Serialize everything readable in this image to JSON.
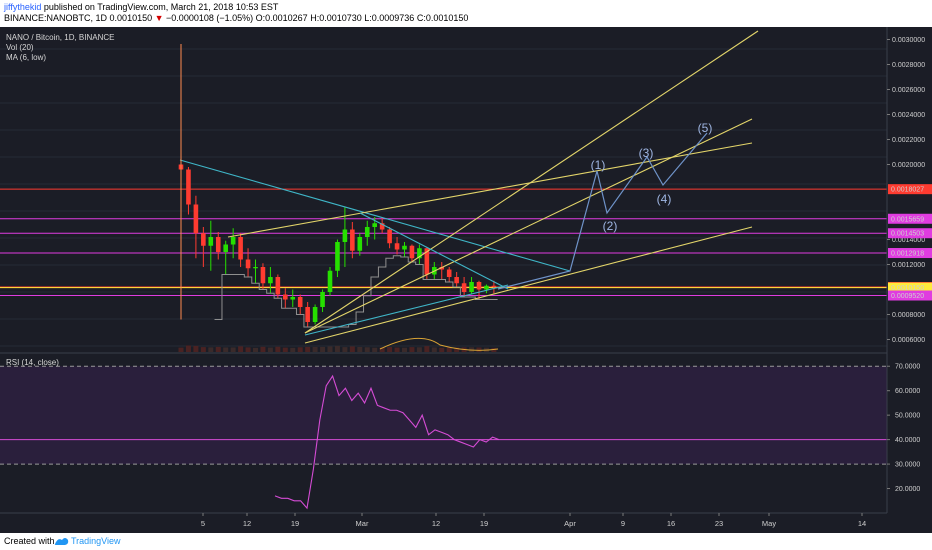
{
  "header": {
    "user": "jiffythekid",
    "published_text": " published on TradingView.com, March 21, 2018 10:53 EST",
    "symbol": "BINANCE:NANOBTC, 1D",
    "last": "0.0010150",
    "change": "−0.0000108 (−1.05%)",
    "o": "O:0.0010267",
    "h": "H:0.0010730",
    "l": "L:0.0009736",
    "c": "C:0.0010150"
  },
  "legend": {
    "title": "NANO / Bitcoin, 1D, BINANCE",
    "vol": "Vol (20)",
    "ma": "MA (6, low)",
    "rsi": "RSI (14, close)"
  },
  "footer": {
    "created": "Created with",
    "brand": "TradingView"
  },
  "colors": {
    "background": "#1b1d26",
    "bull": "#26e000",
    "bear": "#ff3b30",
    "trend_yellow": "#e3d56a",
    "trend_cyan": "#3fb6c8",
    "hline_red": "#ff3b30",
    "hline_magenta": "#e03ce0",
    "projection": "#6f93c9",
    "rsi_line": "#d54cd5",
    "rsi_bg": "#2a1f3c",
    "ma_line": "#8f8f8f",
    "vol_ma": "#d9a335"
  },
  "chart_data": {
    "type": "candlestick",
    "x_ticks": [
      "5",
      "12",
      "19",
      "Mar",
      "12",
      "19",
      "Apr",
      "9",
      "16",
      "23",
      "May",
      "14"
    ],
    "price_axis": [
      "0.0030000",
      "0.0028000",
      "0.0026000",
      "0.0024000",
      "0.0022000",
      "0.0020000",
      "0.0014000",
      "0.0012000",
      "0.0008000",
      "0.0006000"
    ],
    "price_range": [
      0.0005,
      0.0031
    ],
    "highlighted_levels": [
      {
        "label": "0.0018027",
        "value": 0.0018027,
        "color": "#ff3b30"
      },
      {
        "label": "0.0015659",
        "value": 0.0015659,
        "color": "#e03ce0"
      },
      {
        "label": "0.0014503",
        "value": 0.0014503,
        "color": "#e03ce0"
      },
      {
        "label": "0.0012918",
        "value": 0.0012918,
        "color": "#e03ce0"
      },
      {
        "label": "0.0010200",
        "value": 0.00102,
        "color": "#ff3b30"
      },
      {
        "label": "0.0010150",
        "value": 0.001015,
        "color": "#ffeb3b"
      },
      {
        "label": "0.0009520",
        "value": 0.000952,
        "color": "#e03ce0"
      }
    ],
    "candles_ohlc": [
      [
        0.002,
        0.00295,
        0.00076,
        0.00196
      ],
      [
        0.00196,
        0.00198,
        0.0016,
        0.00168
      ],
      [
        0.00168,
        0.00175,
        0.00125,
        0.00145
      ],
      [
        0.00145,
        0.0015,
        0.00118,
        0.00135
      ],
      [
        0.00135,
        0.00155,
        0.00115,
        0.00142
      ],
      [
        0.00142,
        0.00146,
        0.00124,
        0.0013
      ],
      [
        0.0013,
        0.00139,
        0.00112,
        0.00136
      ],
      [
        0.00136,
        0.00149,
        0.00125,
        0.00142
      ],
      [
        0.00142,
        0.00145,
        0.00118,
        0.00124
      ],
      [
        0.00124,
        0.00133,
        0.0011,
        0.00117
      ],
      [
        0.00117,
        0.00124,
        0.00105,
        0.00118
      ],
      [
        0.00118,
        0.00121,
        0.001,
        0.00105
      ],
      [
        0.00105,
        0.00118,
        0.00097,
        0.0011
      ],
      [
        0.0011,
        0.00112,
        0.00093,
        0.00096
      ],
      [
        0.00096,
        0.00101,
        0.00085,
        0.00092
      ],
      [
        0.00092,
        0.001,
        0.00086,
        0.00094
      ],
      [
        0.00094,
        0.00096,
        0.0008,
        0.00086
      ],
      [
        0.00086,
        0.0009,
        0.0007,
        0.00074
      ],
      [
        0.00074,
        0.00088,
        0.00072,
        0.00086
      ],
      [
        0.00086,
        0.001,
        0.00082,
        0.00098
      ],
      [
        0.00098,
        0.00118,
        0.00095,
        0.00115
      ],
      [
        0.00115,
        0.0014,
        0.0011,
        0.00138
      ],
      [
        0.00138,
        0.00166,
        0.00118,
        0.00148
      ],
      [
        0.00148,
        0.00154,
        0.00125,
        0.00131
      ],
      [
        0.00131,
        0.00145,
        0.00127,
        0.00142
      ],
      [
        0.00142,
        0.00155,
        0.00135,
        0.0015
      ],
      [
        0.0015,
        0.00158,
        0.0014,
        0.00153
      ],
      [
        0.00153,
        0.00158,
        0.00145,
        0.00148
      ],
      [
        0.00148,
        0.0015,
        0.00133,
        0.00137
      ],
      [
        0.00137,
        0.00142,
        0.00128,
        0.00132
      ],
      [
        0.00132,
        0.00138,
        0.00126,
        0.00135
      ],
      [
        0.00135,
        0.00136,
        0.00122,
        0.00125
      ],
      [
        0.00125,
        0.00136,
        0.0012,
        0.00133
      ],
      [
        0.00133,
        0.00134,
        0.00108,
        0.00112
      ],
      [
        0.00112,
        0.00122,
        0.00108,
        0.00118
      ],
      [
        0.00118,
        0.00122,
        0.00108,
        0.00116
      ],
      [
        0.00116,
        0.00118,
        0.00106,
        0.0011
      ],
      [
        0.0011,
        0.00114,
        0.00102,
        0.00105
      ],
      [
        0.00105,
        0.0011,
        0.00094,
        0.00098
      ],
      [
        0.00098,
        0.0011,
        0.00096,
        0.00106
      ],
      [
        0.00106,
        0.00107,
        0.00092,
        0.001
      ],
      [
        0.001,
        0.00104,
        0.00097,
        0.00103
      ],
      [
        0.00103,
        0.00107,
        0.00097,
        0.00102
      ]
    ],
    "rsi_axis": [
      "70.0000",
      "60.0000",
      "50.0000",
      "40.0000",
      "30.0000",
      "20.0000"
    ],
    "rsi_range": [
      10,
      75
    ],
    "rsi_bands": [
      70,
      40,
      30
    ],
    "rsi_values": [
      17,
      16,
      16,
      15,
      15,
      12,
      28,
      48,
      62,
      66,
      58,
      61,
      56,
      59,
      55,
      61,
      54,
      53,
      52,
      52,
      51,
      48,
      45,
      50,
      42,
      44,
      43,
      42,
      40,
      39,
      38,
      37,
      40,
      39,
      41,
      40
    ],
    "wave_labels": [
      "(1)",
      "(2)",
      "(3)",
      "(4)",
      "(5)"
    ]
  }
}
